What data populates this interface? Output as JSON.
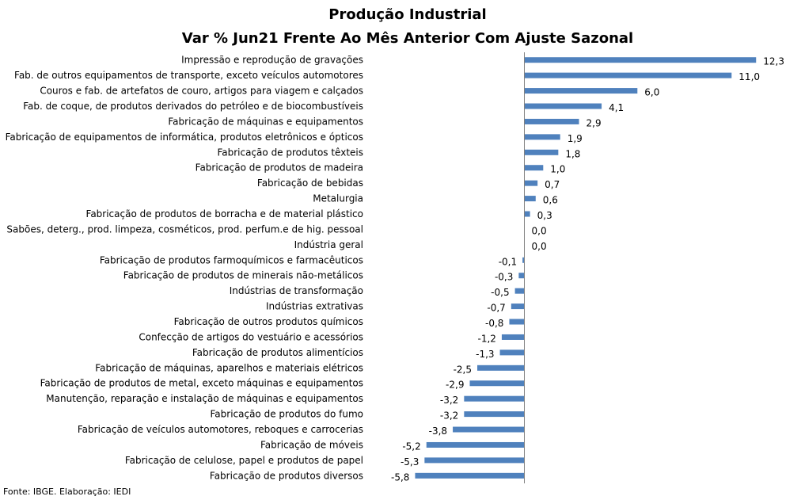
{
  "chart_data": {
    "type": "bar",
    "orientation": "horizontal",
    "title": "Produção Industrial",
    "subtitle": "Var % Jun21 Frente Ao Mês Anterior Com Ajuste Sazonal",
    "categories": [
      "Impressão e reprodução de gravações",
      "Fab. de outros equipamentos de transporte, exceto veículos automotores",
      "Couros e fab. de artefatos de couro, artigos para viagem e calçados",
      "Fab. de coque, de produtos derivados do petróleo e de biocombustíveis",
      "Fabricação de máquinas e equipamentos",
      "Fabricação de equipamentos de informática, produtos eletrônicos e ópticos",
      "Fabricação de produtos têxteis",
      "Fabricação de produtos de madeira",
      "Fabricação de bebidas",
      "Metalurgia",
      "Fabricação de produtos de borracha e de material plástico",
      "Sabões, deterg., prod. limpeza, cosméticos, prod. perfum.e de hig. pessoal",
      "Indústria geral",
      "Fabricação de produtos farmoquímicos e farmacêuticos",
      "Fabricação de produtos de minerais não-metálicos",
      "Indústrias de transformação",
      "Indústrias extrativas",
      "Fabricação de outros produtos químicos",
      "Confecção de artigos do vestuário e acessórios",
      "Fabricação de produtos alimentícios",
      "Fabricação de máquinas, aparelhos e materiais elétricos",
      "Fabricação de produtos de metal, exceto máquinas e equipamentos",
      "Manutenção, reparação e instalação de máquinas e equipamentos",
      "Fabricação de produtos do fumo",
      "Fabricação de veículos automotores, reboques e carrocerias",
      "Fabricação de móveis",
      "Fabricação de celulose, papel e produtos de papel",
      "Fabricação de produtos diversos"
    ],
    "values": [
      12.3,
      11.0,
      6.0,
      4.1,
      2.9,
      1.9,
      1.8,
      1.0,
      0.7,
      0.6,
      0.3,
      0.0,
      0.0,
      -0.1,
      -0.3,
      -0.5,
      -0.7,
      -0.8,
      -1.2,
      -1.3,
      -2.5,
      -2.9,
      -3.2,
      -3.2,
      -3.8,
      -5.2,
      -5.3,
      -5.8
    ],
    "value_labels": [
      "12,3",
      "11,0",
      "6,0",
      "4,1",
      "2,9",
      "1,9",
      "1,8",
      "1,0",
      "0,7",
      "0,6",
      "0,3",
      "0,0",
      "0,0",
      "-0,1",
      "-0,3",
      "-0,5",
      "-0,7",
      "-0,8",
      "-1,2",
      "-1,3",
      "-2,5",
      "-2,9",
      "-3,2",
      "-3,2",
      "-3,8",
      "-5,2",
      "-5,3",
      "-5,8"
    ],
    "xlim": [
      -5.8,
      12.3
    ],
    "bar_color": "#4F81BD",
    "grid": false,
    "legend": "none",
    "source": "Fonte: IBGE. Elaboração: IEDI"
  }
}
